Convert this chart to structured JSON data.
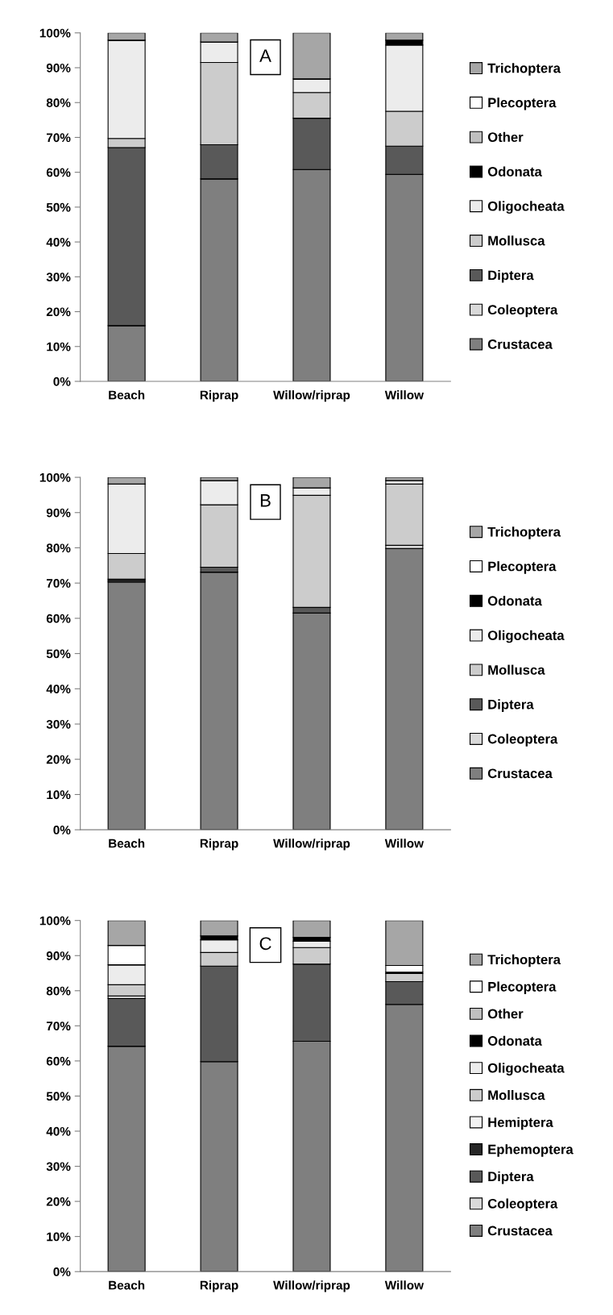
{
  "chart_data": [
    {
      "type": "bar",
      "stacked": true,
      "categories": [
        "Beach",
        "Riprap",
        "Willow/riprap",
        "Willow"
      ],
      "ylim": [
        0,
        100
      ],
      "yticks": [
        {
          "value": 0,
          "label": "0%"
        },
        {
          "value": 10,
          "label": "10%"
        },
        {
          "value": 20,
          "label": "20%"
        },
        {
          "value": 30,
          "label": "30%"
        },
        {
          "value": 40,
          "label": "40%"
        },
        {
          "value": 50,
          "label": "50%"
        },
        {
          "value": 60,
          "label": "60%"
        },
        {
          "value": 70,
          "label": "70%"
        },
        {
          "value": 80,
          "label": "80%"
        },
        {
          "value": 90,
          "label": "90%"
        },
        {
          "value": 100,
          "label": "100%"
        }
      ],
      "grid": false,
      "legend": "right",
      "annotations": [
        "A"
      ],
      "series": [
        {
          "name": "Crustacea",
          "color": "#7f7f7f",
          "values": [
            16.0,
            58.1,
            60.8,
            59.4
          ]
        },
        {
          "name": "Coleoptera",
          "color": "#d9d9d9",
          "values": [
            0,
            0,
            0,
            0
          ]
        },
        {
          "name": "Diptera",
          "color": "#595959",
          "values": [
            51.1,
            9.8,
            14.7,
            8.1
          ]
        },
        {
          "name": "Mollusca",
          "color": "#cccccc",
          "values": [
            2.6,
            23.6,
            7.4,
            10.0
          ]
        },
        {
          "name": "Oligocheata",
          "color": "#ececec",
          "values": [
            28.2,
            5.9,
            3.9,
            19.0
          ]
        },
        {
          "name": "Odonata",
          "color": "#000000",
          "values": [
            0,
            0,
            0,
            1.4
          ]
        },
        {
          "name": "Other",
          "color": "#bfbfbf",
          "values": [
            0,
            0,
            0,
            0
          ]
        },
        {
          "name": "Plecoptera",
          "color": "#ffffff",
          "values": [
            0,
            0,
            0,
            0
          ]
        },
        {
          "name": "Trichoptera",
          "color": "#a6a6a6",
          "values": [
            2.1,
            2.6,
            13.2,
            2.1
          ]
        }
      ]
    },
    {
      "type": "bar",
      "stacked": true,
      "categories": [
        "Beach",
        "Riprap",
        "Willow/riprap",
        "Willow"
      ],
      "ylim": [
        0,
        100
      ],
      "yticks": [
        {
          "value": 0,
          "label": "0%"
        },
        {
          "value": 10,
          "label": "10%"
        },
        {
          "value": 20,
          "label": "20%"
        },
        {
          "value": 30,
          "label": "30%"
        },
        {
          "value": 40,
          "label": "40%"
        },
        {
          "value": 50,
          "label": "50%"
        },
        {
          "value": 60,
          "label": "60%"
        },
        {
          "value": 70,
          "label": "70%"
        },
        {
          "value": 80,
          "label": "80%"
        },
        {
          "value": 90,
          "label": "90%"
        },
        {
          "value": 100,
          "label": "100%"
        }
      ],
      "grid": false,
      "legend": "right",
      "annotations": [
        "B"
      ],
      "series": [
        {
          "name": "Crustacea",
          "color": "#7f7f7f",
          "values": [
            70.3,
            73.1,
            61.5,
            79.8
          ]
        },
        {
          "name": "Coleoptera",
          "color": "#d9d9d9",
          "values": [
            0.4,
            0,
            0,
            0.9
          ]
        },
        {
          "name": "Diptera",
          "color": "#595959",
          "values": [
            0.4,
            1.4,
            1.6,
            0
          ]
        },
        {
          "name": "Mollusca",
          "color": "#cccccc",
          "values": [
            7.3,
            17.7,
            31.8,
            17.4
          ]
        },
        {
          "name": "Oligocheata",
          "color": "#ececec",
          "values": [
            19.7,
            6.9,
            2.1,
            1.0
          ]
        },
        {
          "name": "Odonata",
          "color": "#000000",
          "values": [
            0,
            0,
            0,
            0
          ]
        },
        {
          "name": "Plecoptera",
          "color": "#ffffff",
          "values": [
            0,
            0,
            0,
            0
          ]
        },
        {
          "name": "Trichoptera",
          "color": "#a6a6a6",
          "values": [
            1.9,
            0.9,
            3.0,
            0.9
          ]
        }
      ]
    },
    {
      "type": "bar",
      "stacked": true,
      "categories": [
        "Beach",
        "Riprap",
        "Willow/riprap",
        "Willow"
      ],
      "ylim": [
        0,
        100
      ],
      "yticks": [
        {
          "value": 0,
          "label": "0%"
        },
        {
          "value": 10,
          "label": "10%"
        },
        {
          "value": 20,
          "label": "20%"
        },
        {
          "value": 30,
          "label": "30%"
        },
        {
          "value": 40,
          "label": "40%"
        },
        {
          "value": 50,
          "label": "50%"
        },
        {
          "value": 60,
          "label": "60%"
        },
        {
          "value": 70,
          "label": "70%"
        },
        {
          "value": 80,
          "label": "80%"
        },
        {
          "value": 90,
          "label": "90%"
        },
        {
          "value": 100,
          "label": "100%"
        }
      ],
      "grid": false,
      "legend": "right",
      "annotations": [
        "C"
      ],
      "series": [
        {
          "name": "Crustacea",
          "color": "#7f7f7f",
          "values": [
            64.2,
            59.8,
            65.6,
            76.1
          ]
        },
        {
          "name": "Coleoptera",
          "color": "#d9d9d9",
          "values": [
            0,
            0,
            0,
            0
          ]
        },
        {
          "name": "Diptera",
          "color": "#595959",
          "values": [
            13.6,
            27.2,
            22.0,
            6.5
          ]
        },
        {
          "name": "Ephemoptera",
          "color": "#262626",
          "values": [
            0,
            0,
            0,
            0
          ]
        },
        {
          "name": "Hemiptera",
          "color": "#f2f2f2",
          "values": [
            0.7,
            0,
            0,
            0
          ]
        },
        {
          "name": "Mollusca",
          "color": "#cccccc",
          "values": [
            3.2,
            3.9,
            4.7,
            2.3
          ]
        },
        {
          "name": "Oligocheata",
          "color": "#ececec",
          "values": [
            5.7,
            3.6,
            1.8,
            0
          ]
        },
        {
          "name": "Odonata",
          "color": "#000000",
          "values": [
            0,
            1.1,
            1.1,
            0.4
          ]
        },
        {
          "name": "Other",
          "color": "#bfbfbf",
          "values": [
            0,
            0,
            0,
            0
          ]
        },
        {
          "name": "Plecoptera",
          "color": "#ffffff",
          "values": [
            5.5,
            0,
            0,
            1.9
          ]
        },
        {
          "name": "Trichoptera",
          "color": "#a6a6a6",
          "values": [
            7.1,
            4.4,
            4.8,
            12.8
          ]
        }
      ]
    }
  ]
}
